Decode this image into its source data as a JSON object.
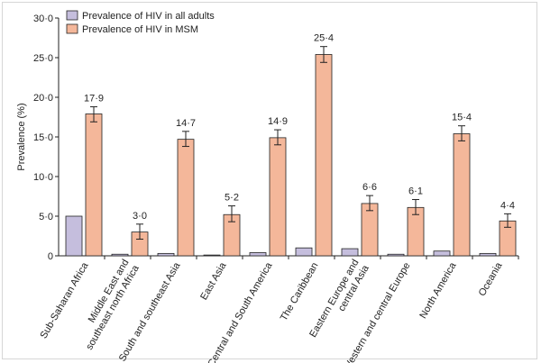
{
  "chart_data": {
    "type": "bar",
    "ylabel": "Prevalence (%)",
    "ylim": [
      0,
      30
    ],
    "yticks": [
      "0",
      "5·0",
      "10·0",
      "15·0",
      "20·0",
      "25·0",
      "30·0"
    ],
    "ytick_values": [
      0,
      5,
      10,
      15,
      20,
      25,
      30
    ],
    "grid": false,
    "legend_position": "top-left",
    "categories": [
      "Sub-Saharan Africa",
      "Middle East and\nsoutheast north Africa",
      "South and southeast Asia",
      "East Asia",
      "Central and South America",
      "The Caribbean",
      "Eastern Europe and\ncentral Asia",
      "Western and central Europe",
      "North America",
      "Oceania"
    ],
    "series": [
      {
        "name": "Prevalence of HIV in all adults",
        "color": "#c5bedd",
        "values": [
          5.0,
          0.2,
          0.3,
          0.1,
          0.4,
          1.0,
          0.9,
          0.2,
          0.6,
          0.3
        ]
      },
      {
        "name": "Prevalence of HIV in MSM",
        "color": "#f4b79a",
        "values": [
          17.9,
          3.0,
          14.7,
          5.2,
          14.9,
          25.4,
          6.6,
          6.1,
          15.4,
          4.4
        ],
        "error_low": [
          16.9,
          2.1,
          13.8,
          4.3,
          14.0,
          24.4,
          5.7,
          5.2,
          14.5,
          3.6
        ],
        "error_high": [
          18.8,
          4.0,
          15.7,
          6.3,
          15.9,
          26.4,
          7.6,
          7.1,
          16.4,
          5.3
        ],
        "labels": [
          "17·9",
          "3·0",
          "14·7",
          "5·2",
          "14·9",
          "25·4",
          "6·6",
          "6·1",
          "15·4",
          "4·4"
        ]
      }
    ]
  }
}
